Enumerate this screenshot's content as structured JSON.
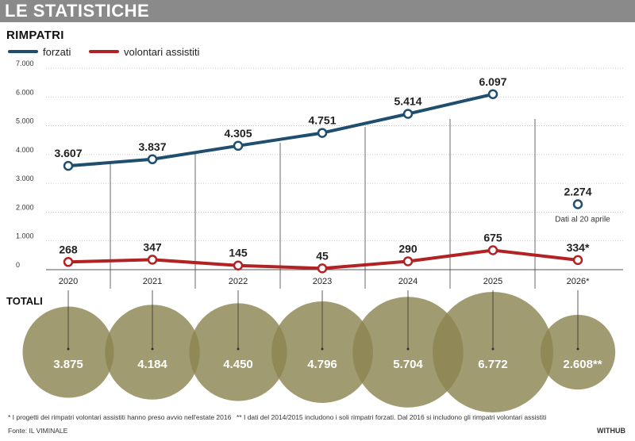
{
  "header": {
    "title": "LE STATISTICHE"
  },
  "subtitle": "RIMPATRI",
  "legend": [
    {
      "label": "forzati",
      "color": "#1f4e6e"
    },
    {
      "label": "volontari assistiti",
      "color": "#b22222"
    }
  ],
  "chart_data": {
    "type": "line",
    "title": "RIMPATRI",
    "categories": [
      "2020",
      "2021",
      "2022",
      "2023",
      "2024",
      "2025",
      "2026*"
    ],
    "ylim": [
      0,
      7000
    ],
    "yticks": [
      "0",
      "1.000",
      "2.000",
      "3.000",
      "4.000",
      "5.000",
      "6.000",
      "7.000"
    ],
    "ytick_values": [
      0,
      1000,
      2000,
      3000,
      4000,
      5000,
      6000,
      7000
    ],
    "series": [
      {
        "name": "forzati",
        "color": "#1f4e6e",
        "values": [
          3607,
          3837,
          4305,
          4751,
          5414,
          6097,
          2274
        ],
        "labels": [
          "3.607",
          "3.837",
          "4.305",
          "4.751",
          "5.414",
          "6.097",
          "2.274"
        ]
      },
      {
        "name": "volontari assistiti",
        "color": "#b22222",
        "values": [
          268,
          347,
          145,
          45,
          290,
          675,
          334
        ],
        "labels": [
          "268",
          "347",
          "145",
          "45",
          "290",
          "675",
          "334*"
        ]
      }
    ],
    "annotation": "Dati al 20 aprile",
    "totals_title": "TOTALI",
    "totals": [
      3875,
      4184,
      4450,
      4796,
      5704,
      6772,
      2608
    ],
    "totals_labels": [
      "3.875",
      "4.184",
      "4.450",
      "4.796",
      "5.704",
      "6.772",
      "2.608**"
    ],
    "bubble_color": "#8c8552"
  },
  "footnotes": {
    "note1": "* I progetti dei rimpatri volontari assistiti hanno preso avvio nell'estate 2016",
    "note2": "** I dati del 2014/2015 includono i soli rimpatri forzati. Dal 2016 si includono gli rimpatri volontari assistiti",
    "source": "Fonte: IL VIMINALE",
    "brand": "WITHUB"
  }
}
